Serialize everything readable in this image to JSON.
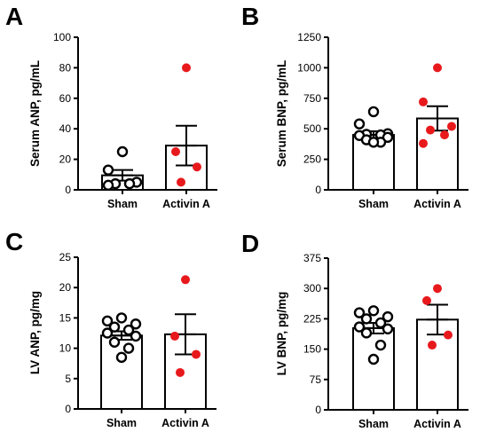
{
  "chart_data": [
    {
      "type": "bar",
      "panel": "A",
      "ylabel": "Serum ANP, pg/mL",
      "ylim": [
        0,
        100
      ],
      "yticks": [
        0,
        20,
        40,
        60,
        80,
        100
      ],
      "categories": [
        "Sham",
        "Activin A"
      ],
      "means": [
        9.5,
        29
      ],
      "sem": [
        3.5,
        13
      ],
      "points": [
        [
          25,
          13,
          5,
          4,
          4,
          3
        ],
        [
          80,
          25,
          15,
          5
        ]
      ],
      "point_colors": [
        "#000000",
        "#e8191c"
      ],
      "point_fill": [
        "none",
        "#e8191c"
      ]
    },
    {
      "type": "bar",
      "panel": "B",
      "ylabel": "Serum BNP, pg/mL",
      "ylim": [
        0,
        1250
      ],
      "yticks": [
        0,
        250,
        500,
        750,
        1000,
        1250
      ],
      "categories": [
        "Sham",
        "Activin A"
      ],
      "means": [
        450,
        585
      ],
      "sem": [
        30,
        100
      ],
      "points": [
        [
          640,
          540,
          460,
          455,
          450,
          445,
          430,
          410,
          390,
          390
        ],
        [
          1000,
          720,
          520,
          490,
          450,
          380
        ]
      ],
      "point_colors": [
        "#000000",
        "#e8191c"
      ],
      "point_fill": [
        "none",
        "#e8191c"
      ]
    },
    {
      "type": "bar",
      "panel": "C",
      "ylabel": "LV ANP, pg/mg",
      "ylim": [
        0,
        25
      ],
      "yticks": [
        0,
        5,
        10,
        15,
        20,
        25
      ],
      "categories": [
        "Sham",
        "Activin A"
      ],
      "means": [
        12.1,
        12.3
      ],
      "sem": [
        0.7,
        3.3
      ],
      "points": [
        [
          15,
          14.5,
          14,
          13.5,
          13,
          12.5,
          12,
          11,
          10,
          8.5
        ],
        [
          21.3,
          12,
          9,
          6
        ]
      ],
      "point_colors": [
        "#000000",
        "#e8191c"
      ],
      "point_fill": [
        "none",
        "#e8191c"
      ]
    },
    {
      "type": "bar",
      "panel": "D",
      "ylabel": "LV BNP, pg/mg",
      "ylim": [
        0,
        375
      ],
      "yticks": [
        0,
        75,
        150,
        225,
        300,
        375
      ],
      "categories": [
        "Sham",
        "Activin A"
      ],
      "means": [
        202,
        223
      ],
      "sem": [
        13,
        37
      ],
      "points": [
        [
          245,
          240,
          230,
          225,
          215,
          205,
          200,
          190,
          160,
          125
        ],
        [
          300,
          270,
          185,
          160
        ]
      ],
      "point_colors": [
        "#000000",
        "#e8191c"
      ],
      "point_fill": [
        "none",
        "#e8191c"
      ]
    }
  ]
}
